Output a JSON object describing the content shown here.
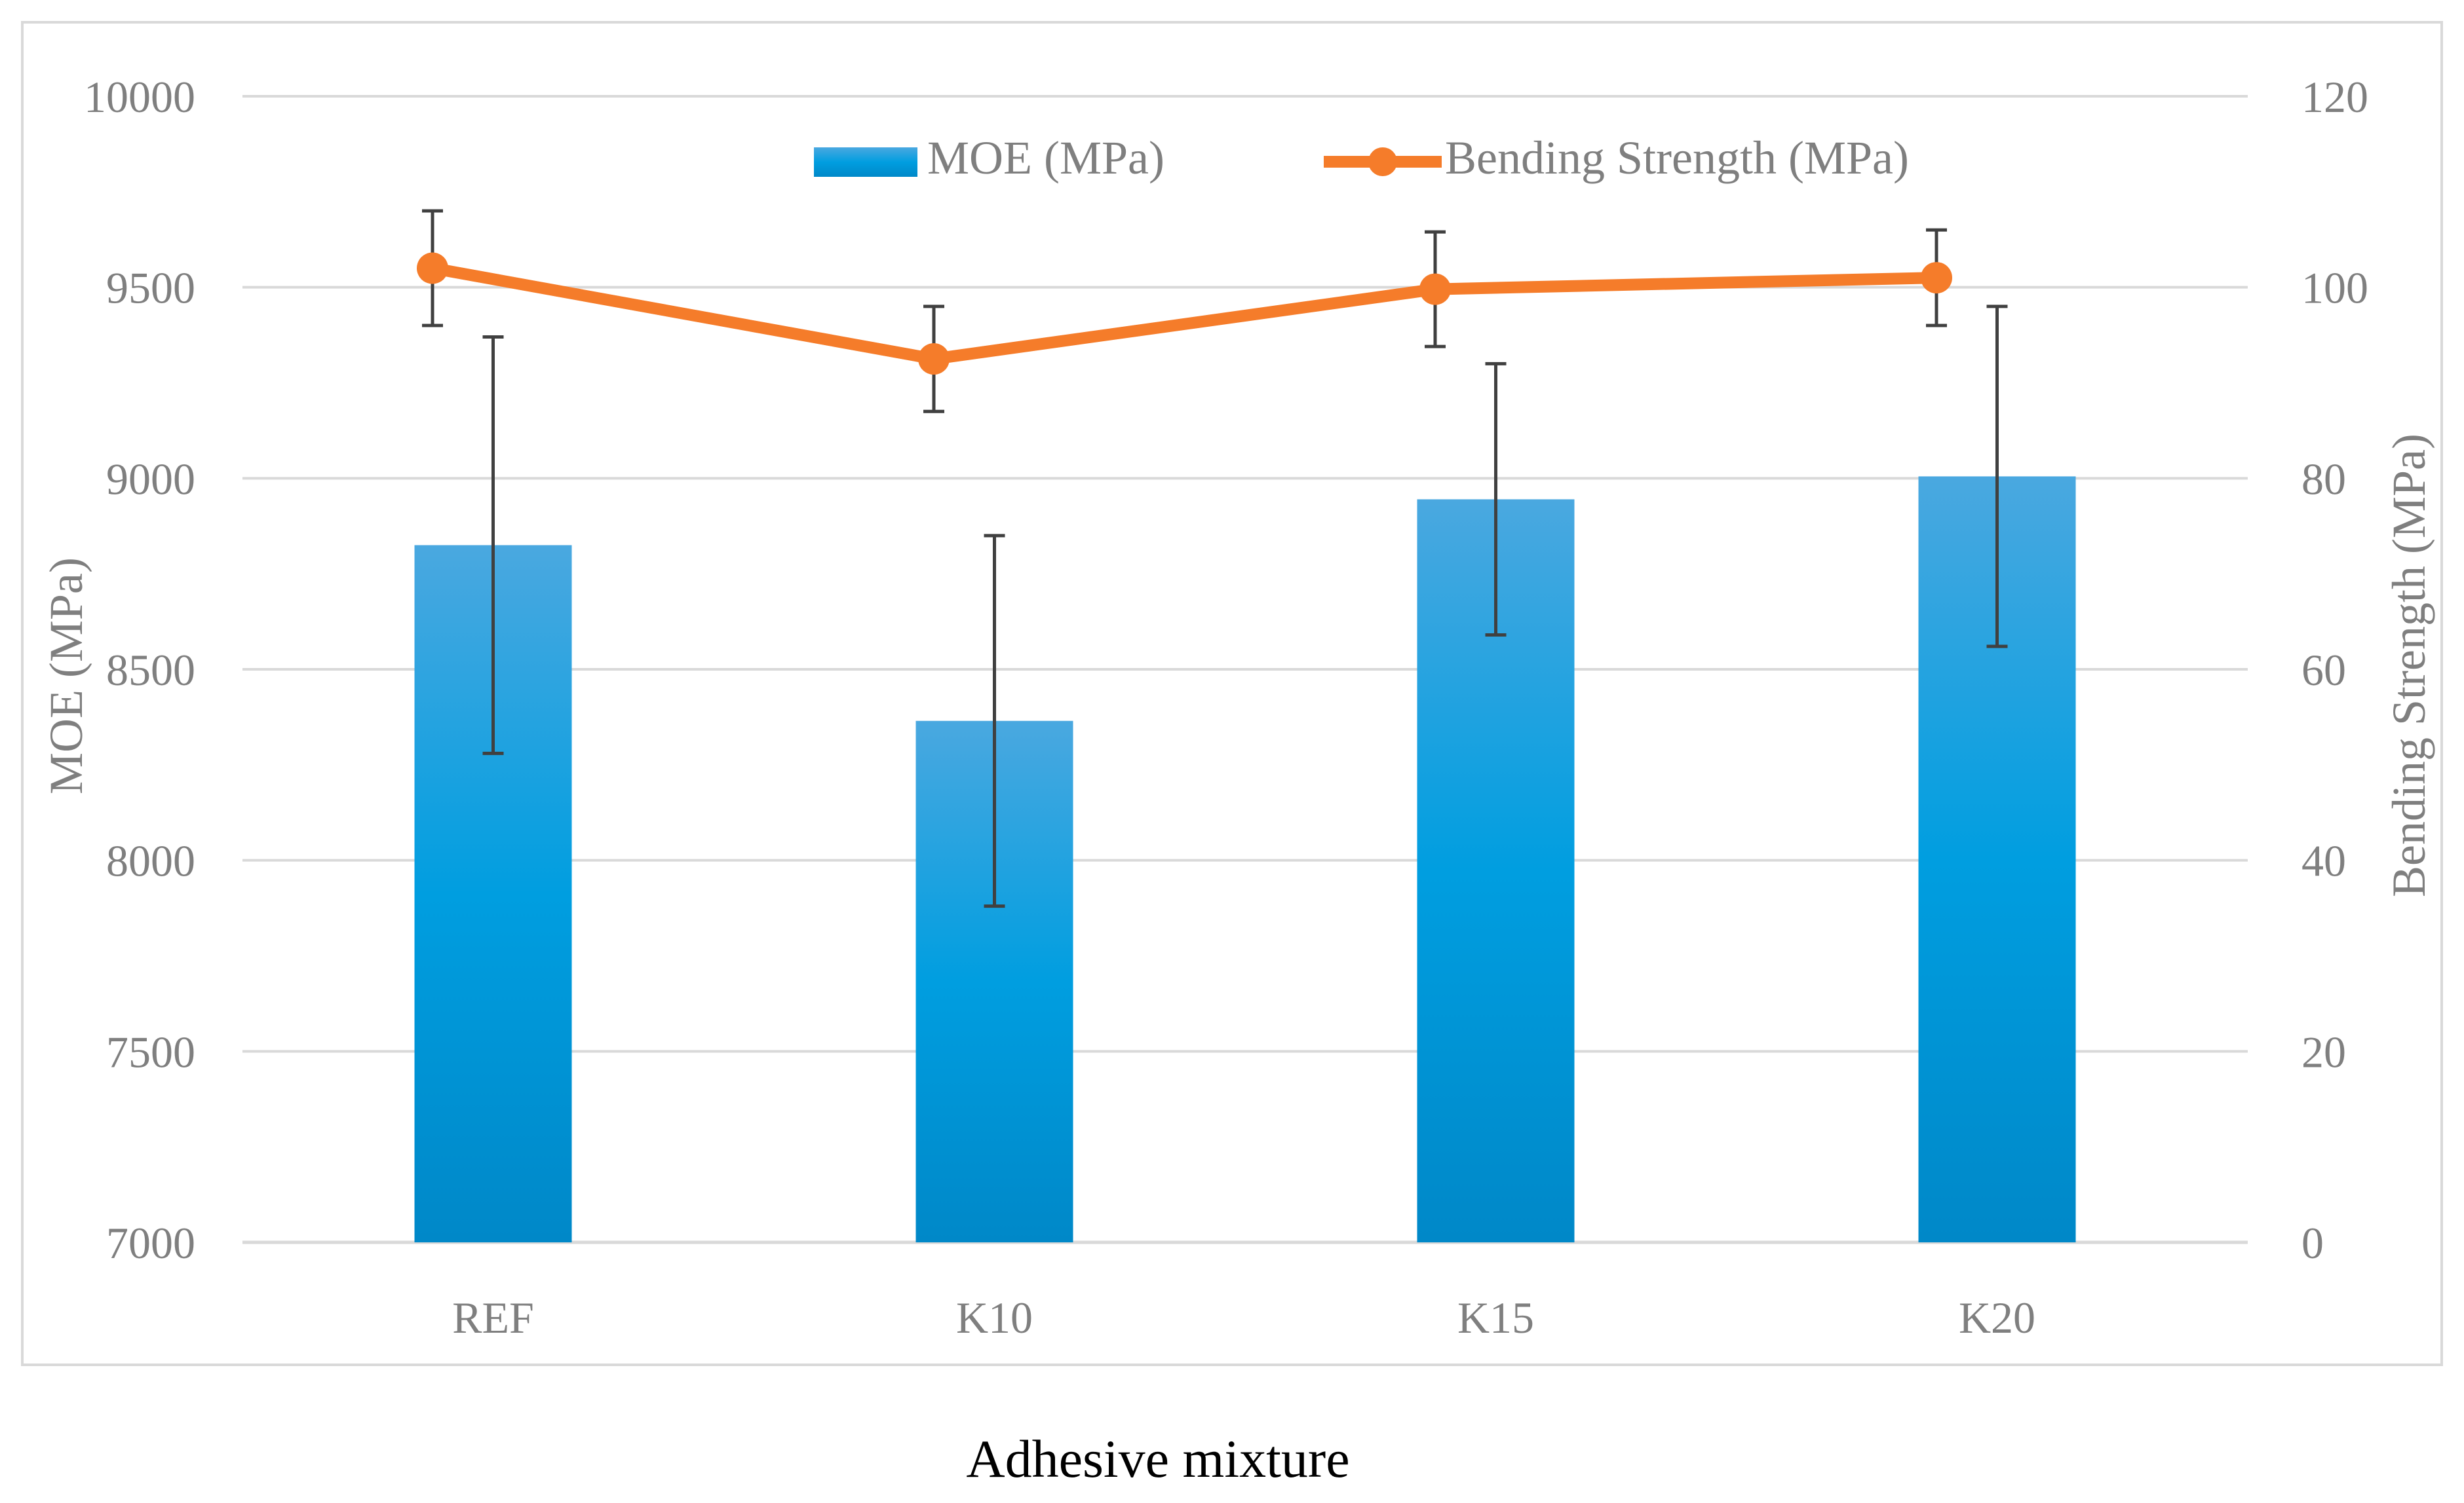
{
  "chart_data": {
    "type": "bar+line",
    "title": "",
    "xlabel": "Adhesive mixture",
    "ylabel": "MOE (MPa)",
    "y2label": "Bending Strength (MPa)",
    "categories": [
      "REF",
      "K10",
      "K15",
      "K20"
    ],
    "ylim": [
      7000,
      10000
    ],
    "yticks": [
      "7000",
      "7500",
      "8000",
      "8500",
      "9000",
      "9500",
      "10000"
    ],
    "y2lim": [
      0,
      120
    ],
    "y2ticks": [
      "0",
      "20",
      "40",
      "60",
      "80",
      "100",
      "120"
    ],
    "grid": true,
    "legend_position": "top-center",
    "series": [
      {
        "name": "MOE (MPa)",
        "type": "bar",
        "axis": "left",
        "values": [
          8825,
          8365,
          8945,
          9005
        ],
        "error": [
          545,
          485,
          355,
          445
        ],
        "color": "#0f95d9"
      },
      {
        "name": "Bending Strength (MPa)",
        "type": "line",
        "axis": "right",
        "values": [
          102,
          92.5,
          99.8,
          101
        ],
        "error": [
          6,
          5.5,
          6,
          5
        ],
        "color": "#f57c2a"
      }
    ]
  }
}
